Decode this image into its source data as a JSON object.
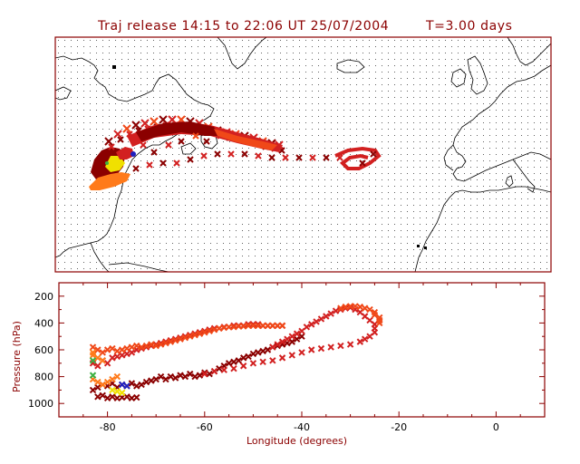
{
  "title": {
    "release_text": "Traj release 14:15 to 22:06 UT 25/07/2004",
    "time_text": "T=3.00 days"
  },
  "colors": {
    "frame": "#8b0000",
    "grid_dot": "#606060",
    "coastline": "#000000",
    "traj_darkred": "#8b0000",
    "traj_red": "#d22020",
    "traj_orangered": "#f04818",
    "traj_orange": "#ff7a1a",
    "traj_yellow": "#f0e000",
    "traj_green": "#3cb043",
    "traj_blue": "#2020c0"
  },
  "map_panel": {
    "description_icon": "world-map-icon"
  },
  "chart_data": {
    "type": "scatter",
    "title": "",
    "xlabel": "Longitude  (degrees)",
    "ylabel": "Pressure  (hPa)",
    "xlim": [
      -90,
      10
    ],
    "ylim": [
      1100,
      100
    ],
    "y_inverted": true,
    "x_ticks": [
      -80,
      -60,
      -40,
      -20,
      0
    ],
    "y_ticks": [
      200,
      400,
      600,
      800,
      1000
    ],
    "grid": false,
    "series": [
      {
        "color": "#8b0000",
        "points": [
          [
            -83,
            900
          ],
          [
            -82,
            950
          ],
          [
            -81,
            940
          ],
          [
            -80,
            960
          ],
          [
            -79,
            950
          ],
          [
            -78,
            960
          ],
          [
            -77,
            955
          ],
          [
            -76,
            950
          ],
          [
            -75,
            960
          ],
          [
            -74,
            955
          ],
          [
            -82,
            880
          ],
          [
            -81,
            860
          ],
          [
            -80,
            870
          ],
          [
            -79,
            850
          ],
          [
            -78,
            880
          ],
          [
            -77,
            860
          ],
          [
            -76,
            870
          ],
          [
            -75,
            850
          ],
          [
            -74,
            870
          ],
          [
            -73,
            860
          ],
          [
            -72,
            840
          ],
          [
            -71,
            830
          ],
          [
            -70,
            820
          ],
          [
            -69,
            800
          ],
          [
            -68,
            820
          ],
          [
            -67,
            800
          ],
          [
            -66,
            810
          ],
          [
            -65,
            790
          ],
          [
            -64,
            800
          ],
          [
            -63,
            780
          ],
          [
            -62,
            800
          ],
          [
            -61,
            790
          ],
          [
            -60,
            770
          ],
          [
            -59,
            780
          ],
          [
            -58,
            760
          ],
          [
            -57,
            740
          ],
          [
            -56,
            720
          ],
          [
            -55,
            700
          ],
          [
            -54,
            690
          ],
          [
            -53,
            680
          ],
          [
            -52,
            660
          ],
          [
            -51,
            650
          ],
          [
            -50,
            630
          ],
          [
            -49,
            620
          ],
          [
            -48,
            610
          ],
          [
            -47,
            600
          ],
          [
            -46,
            580
          ],
          [
            -45,
            570
          ],
          [
            -44,
            560
          ],
          [
            -43,
            550
          ],
          [
            -42,
            540
          ],
          [
            -41,
            520
          ],
          [
            -40,
            500
          ]
        ]
      },
      {
        "color": "#d22020",
        "points": [
          [
            -83,
            700
          ],
          [
            -82,
            720
          ],
          [
            -81,
            680
          ],
          [
            -80,
            700
          ],
          [
            -79,
            660
          ],
          [
            -78,
            650
          ],
          [
            -77,
            640
          ],
          [
            -76,
            630
          ],
          [
            -75,
            620
          ],
          [
            -74,
            600
          ],
          [
            -73,
            590
          ],
          [
            -72,
            580
          ],
          [
            -71,
            570
          ],
          [
            -70,
            560
          ],
          [
            -69,
            550
          ],
          [
            -68,
            540
          ],
          [
            -67,
            530
          ],
          [
            -66,
            520
          ],
          [
            -65,
            510
          ],
          [
            -64,
            500
          ],
          [
            -63,
            490
          ],
          [
            -62,
            480
          ],
          [
            -61,
            470
          ],
          [
            -60,
            460
          ],
          [
            -59,
            450
          ],
          [
            -58,
            440
          ],
          [
            -57,
            440
          ],
          [
            -56,
            430
          ],
          [
            -55,
            430
          ],
          [
            -54,
            420
          ],
          [
            -53,
            420
          ],
          [
            -52,
            420
          ],
          [
            -51,
            410
          ],
          [
            -50,
            410
          ],
          [
            -49,
            410
          ],
          [
            -48,
            420
          ],
          [
            -47,
            420
          ],
          [
            -46,
            420
          ],
          [
            -45,
            420
          ],
          [
            -44,
            420
          ],
          [
            -60,
            780
          ],
          [
            -58,
            760
          ],
          [
            -56,
            750
          ],
          [
            -54,
            740
          ],
          [
            -52,
            720
          ],
          [
            -50,
            700
          ],
          [
            -48,
            690
          ],
          [
            -46,
            680
          ],
          [
            -44,
            660
          ],
          [
            -42,
            640
          ],
          [
            -40,
            620
          ],
          [
            -38,
            600
          ],
          [
            -36,
            590
          ],
          [
            -34,
            580
          ],
          [
            -32,
            570
          ],
          [
            -30,
            560
          ],
          [
            -28,
            540
          ],
          [
            -27,
            520
          ],
          [
            -26,
            500
          ],
          [
            -25,
            470
          ],
          [
            -25,
            440
          ],
          [
            -25,
            410
          ],
          [
            -26,
            380
          ],
          [
            -27,
            350
          ],
          [
            -28,
            320
          ],
          [
            -29,
            300
          ],
          [
            -30,
            285
          ],
          [
            -31,
            290
          ],
          [
            -32,
            300
          ],
          [
            -33,
            310
          ],
          [
            -34,
            330
          ],
          [
            -35,
            350
          ],
          [
            -36,
            370
          ],
          [
            -37,
            390
          ],
          [
            -38,
            410
          ],
          [
            -39,
            430
          ],
          [
            -40,
            460
          ],
          [
            -41,
            480
          ],
          [
            -42,
            500
          ],
          [
            -43,
            520
          ],
          [
            -44,
            540
          ],
          [
            -45,
            560
          ],
          [
            -46,
            580
          ]
        ]
      },
      {
        "color": "#f04818",
        "points": [
          [
            -83,
            580
          ],
          [
            -82,
            600
          ],
          [
            -81,
            620
          ],
          [
            -80,
            600
          ],
          [
            -79,
            590
          ],
          [
            -78,
            610
          ],
          [
            -77,
            600
          ],
          [
            -76,
            590
          ],
          [
            -75,
            580
          ],
          [
            -74,
            570
          ],
          [
            -73,
            580
          ],
          [
            -72,
            570
          ],
          [
            -71,
            560
          ],
          [
            -70,
            570
          ],
          [
            -69,
            560
          ],
          [
            -68,
            550
          ],
          [
            -67,
            540
          ],
          [
            -66,
            530
          ],
          [
            -65,
            520
          ],
          [
            -64,
            510
          ],
          [
            -63,
            500
          ],
          [
            -62,
            490
          ],
          [
            -61,
            480
          ],
          [
            -60,
            470
          ],
          [
            -59,
            460
          ],
          [
            -58,
            450
          ],
          [
            -57,
            440
          ],
          [
            -56,
            435
          ],
          [
            -55,
            430
          ],
          [
            -54,
            430
          ],
          [
            -53,
            425
          ],
          [
            -52,
            425
          ],
          [
            -51,
            420
          ],
          [
            -50,
            420
          ],
          [
            -49,
            420
          ],
          [
            -48,
            420
          ],
          [
            -47,
            420
          ],
          [
            -46,
            420
          ],
          [
            -45,
            420
          ],
          [
            -44,
            420
          ],
          [
            -32,
            290
          ],
          [
            -31,
            280
          ],
          [
            -30,
            275
          ],
          [
            -29,
            275
          ],
          [
            -28,
            280
          ],
          [
            -27,
            290
          ],
          [
            -26,
            300
          ],
          [
            -25,
            320
          ],
          [
            -25,
            340
          ],
          [
            -24,
            360
          ],
          [
            -24,
            380
          ],
          [
            -24,
            400
          ]
        ]
      },
      {
        "color": "#ff7a1a",
        "points": [
          [
            -83,
            620
          ],
          [
            -83,
            640
          ],
          [
            -82,
            660
          ],
          [
            -81,
            680
          ],
          [
            -83,
            820
          ],
          [
            -82,
            840
          ],
          [
            -81,
            860
          ],
          [
            -80,
            840
          ],
          [
            -79,
            820
          ],
          [
            -78,
            800
          ]
        ]
      },
      {
        "color": "#f0e000",
        "points": [
          [
            -79,
            900
          ],
          [
            -78,
            910
          ],
          [
            -77,
            920
          ]
        ]
      },
      {
        "color": "#3cb043",
        "points": [
          [
            -83,
            680
          ],
          [
            -83,
            790
          ]
        ]
      },
      {
        "color": "#2020c0",
        "points": [
          [
            -77,
            860
          ],
          [
            -76,
            870
          ]
        ]
      }
    ]
  }
}
